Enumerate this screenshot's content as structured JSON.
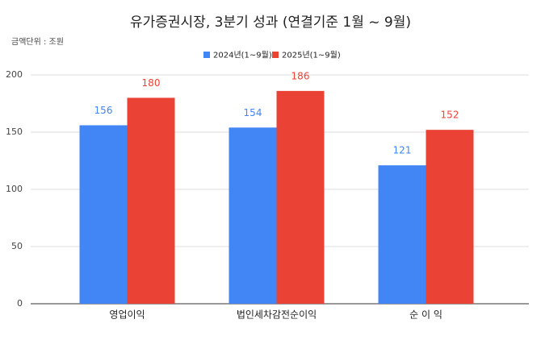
{
  "chart_data": {
    "type": "bar",
    "title": "유가증권시장, 3분기 성과 (연결기준 1월 ~ 9월)",
    "unit_label": "금액단위 : 조원",
    "categories": [
      "영업이익",
      "법인세차감전순이익",
      "순 이 익"
    ],
    "series": [
      {
        "name": "2024년(1~9월)",
        "color": "#4285f4",
        "values": [
          156,
          154,
          121
        ]
      },
      {
        "name": "2025년(1~9월)",
        "color": "#ea4335",
        "values": [
          180,
          186,
          152
        ]
      }
    ],
    "ylim": [
      0,
      200
    ],
    "yticks": [
      0,
      50,
      100,
      150,
      200
    ],
    "grid": true
  }
}
